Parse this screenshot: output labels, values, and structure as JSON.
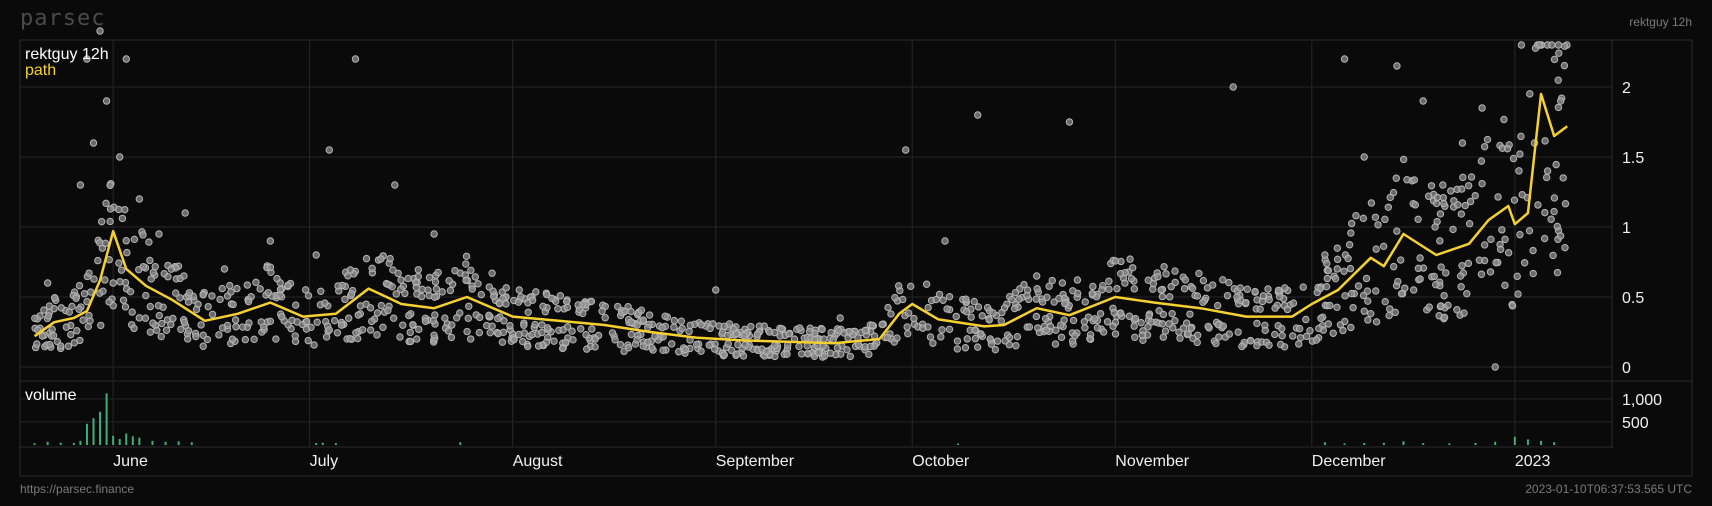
{
  "brand": "parsec",
  "header_right": "rektguy 12h",
  "footer_left": "https://parsec.finance",
  "footer_right": "2023-01-10T06:37:53.565 UTC",
  "colors": {
    "background": "#0a0a0a",
    "scatter": "#b5b5b5",
    "path": "#f5d130",
    "volume": "#3fae78",
    "grid": "#262626"
  },
  "chart_data": [
    {
      "type": "scatter",
      "title": "rektguy 12h",
      "legend": [
        "path"
      ],
      "grid": true,
      "x_ticks": [
        "June",
        "July",
        "August",
        "September",
        "October",
        "November",
        "December",
        "2023"
      ],
      "y_ticks": [
        "0",
        "0.5",
        "1",
        "1.5",
        "2"
      ],
      "ylim": [
        -0.05,
        2.3
      ],
      "path_series": {
        "name": "path",
        "x": [
          "2022-05-20",
          "2022-05-23",
          "2022-05-26",
          "2022-05-28",
          "2022-05-30",
          "2022-06-01",
          "2022-06-03",
          "2022-06-06",
          "2022-06-10",
          "2022-06-15",
          "2022-06-20",
          "2022-06-25",
          "2022-06-30",
          "2022-07-05",
          "2022-07-10",
          "2022-07-15",
          "2022-07-20",
          "2022-07-25",
          "2022-08-01",
          "2022-08-08",
          "2022-08-15",
          "2022-08-22",
          "2022-08-29",
          "2022-09-05",
          "2022-09-12",
          "2022-09-19",
          "2022-09-26",
          "2022-09-29",
          "2022-10-01",
          "2022-10-05",
          "2022-10-12",
          "2022-10-15",
          "2022-10-20",
          "2022-10-25",
          "2022-11-01",
          "2022-11-07",
          "2022-11-14",
          "2022-11-21",
          "2022-11-28",
          "2022-12-01",
          "2022-12-05",
          "2022-12-10",
          "2022-12-12",
          "2022-12-15",
          "2022-12-20",
          "2022-12-25",
          "2022-12-28",
          "2022-12-31",
          "2023-01-01",
          "2023-01-03",
          "2023-01-05",
          "2023-01-07",
          "2023-01-09"
        ],
        "y": [
          0.22,
          0.32,
          0.35,
          0.4,
          0.62,
          0.97,
          0.7,
          0.58,
          0.48,
          0.33,
          0.38,
          0.46,
          0.36,
          0.38,
          0.56,
          0.45,
          0.42,
          0.5,
          0.36,
          0.33,
          0.3,
          0.25,
          0.21,
          0.19,
          0.18,
          0.17,
          0.2,
          0.38,
          0.45,
          0.34,
          0.29,
          0.3,
          0.42,
          0.37,
          0.5,
          0.46,
          0.42,
          0.36,
          0.36,
          0.45,
          0.55,
          0.78,
          0.72,
          0.95,
          0.8,
          0.88,
          1.05,
          1.15,
          1.02,
          1.1,
          1.95,
          1.65,
          1.72
        ]
      },
      "scatter_points": {
        "x": [
          "2022-05-22",
          "2022-05-24",
          "2022-05-27",
          "2022-05-28",
          "2022-05-29",
          "2022-05-30",
          "2022-05-31",
          "2022-06-01",
          "2022-06-02",
          "2022-06-03",
          "2022-06-05",
          "2022-06-08",
          "2022-06-12",
          "2022-06-18",
          "2022-06-25",
          "2022-07-02",
          "2022-07-04",
          "2022-07-08",
          "2022-07-14",
          "2022-07-20",
          "2022-08-02",
          "2022-08-20",
          "2022-09-01",
          "2022-09-20",
          "2022-09-30",
          "2022-10-06",
          "2022-10-11",
          "2022-10-20",
          "2022-10-25",
          "2022-11-08",
          "2022-11-19",
          "2022-12-03",
          "2022-12-06",
          "2022-12-09",
          "2022-12-14",
          "2022-12-18",
          "2022-12-21",
          "2022-12-24",
          "2022-12-27",
          "2022-12-29",
          "2023-01-02",
          "2023-01-04",
          "2023-01-06",
          "2023-01-08"
        ],
        "y": [
          0.6,
          0.15,
          1.3,
          2.2,
          1.6,
          2.4,
          1.9,
          0.6,
          1.5,
          2.2,
          1.2,
          0.95,
          1.1,
          0.7,
          0.9,
          0.8,
          1.55,
          2.2,
          1.3,
          0.95,
          0.55,
          0.3,
          0.55,
          0.35,
          1.55,
          0.9,
          1.8,
          0.65,
          1.75,
          0.55,
          2.0,
          0.8,
          2.2,
          1.5,
          2.15,
          1.9,
          1.3,
          1.6,
          1.85,
          0.0,
          2.3,
          1.6,
          1.4,
          1.9
        ]
      }
    },
    {
      "type": "bar",
      "title": "volume",
      "y_ticks": [
        "500",
        "1,000"
      ],
      "ylim": [
        0,
        1300
      ],
      "x": [
        "2022-05-20",
        "2022-05-22",
        "2022-05-24",
        "2022-05-26",
        "2022-05-27",
        "2022-05-28",
        "2022-05-29",
        "2022-05-30",
        "2022-05-31",
        "2022-06-01",
        "2022-06-02",
        "2022-06-03",
        "2022-06-04",
        "2022-06-05",
        "2022-06-07",
        "2022-06-09",
        "2022-06-11",
        "2022-06-13",
        "2022-07-02",
        "2022-07-03",
        "2022-07-05",
        "2022-07-24",
        "2022-10-08",
        "2022-12-03",
        "2022-12-06",
        "2022-12-09",
        "2022-12-12",
        "2022-12-15",
        "2022-12-18",
        "2022-12-22",
        "2022-12-26",
        "2022-12-29",
        "2023-01-01",
        "2023-01-03",
        "2023-01-05",
        "2023-01-07"
      ],
      "values": [
        40,
        70,
        50,
        45,
        90,
        460,
        580,
        720,
        1120,
        200,
        130,
        250,
        190,
        160,
        90,
        70,
        80,
        60,
        45,
        50,
        40,
        60,
        30,
        60,
        35,
        45,
        50,
        80,
        40,
        35,
        45,
        70,
        180,
        120,
        90,
        60
      ]
    }
  ]
}
